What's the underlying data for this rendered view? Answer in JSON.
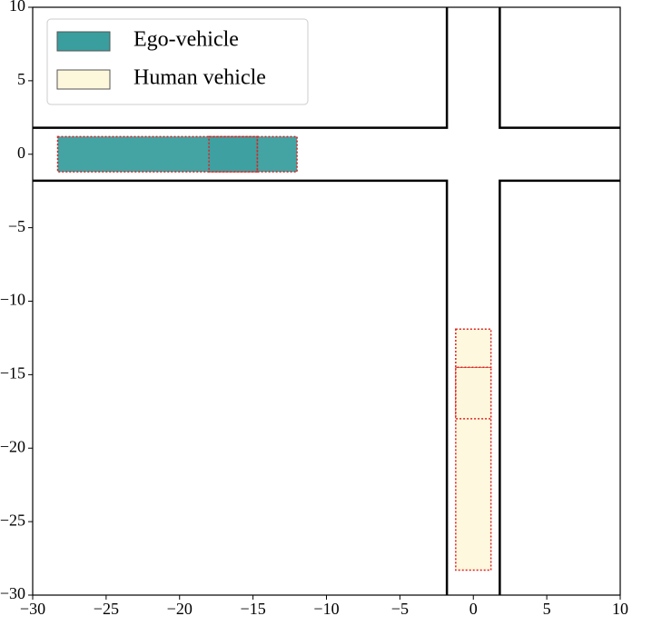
{
  "chart_data": {
    "type": "scene",
    "xlim": [
      -30,
      10
    ],
    "ylim": [
      -30,
      10
    ],
    "xticks": [
      {
        "value": -30,
        "label": "−30"
      },
      {
        "value": -25,
        "label": "−25"
      },
      {
        "value": -20,
        "label": "−20"
      },
      {
        "value": -15,
        "label": "−15"
      },
      {
        "value": -10,
        "label": "−10"
      },
      {
        "value": -5,
        "label": "−5"
      },
      0,
      5,
      10
    ],
    "yticks": [
      {
        "value": -30,
        "label": "−30"
      },
      {
        "value": -25,
        "label": "−25"
      },
      {
        "value": -20,
        "label": "−20"
      },
      {
        "value": -15,
        "label": "−15"
      },
      {
        "value": -10,
        "label": "−10"
      },
      {
        "value": -5,
        "label": "−5"
      },
      0,
      5,
      10
    ],
    "road_edges": [
      {
        "x": [
          -30,
          -1.8,
          -1.8
        ],
        "y": [
          1.8,
          1.8,
          10
        ]
      },
      {
        "x": [
          1.8,
          1.8,
          10
        ],
        "y": [
          10,
          1.8,
          1.8
        ]
      },
      {
        "x": [
          -30,
          -1.8,
          -1.8
        ],
        "y": [
          -1.8,
          -1.8,
          -30
        ]
      },
      {
        "x": [
          1.8,
          1.8,
          10
        ],
        "y": [
          -30,
          -1.8,
          -1.8
        ]
      }
    ],
    "legend": "upper left",
    "series": [
      {
        "name": "Ego-vehicle",
        "color": "#3a9e9e",
        "boxes": [
          {
            "x": [
              -28.3,
              -14.7
            ],
            "y": [
              -1.2,
              1.2
            ]
          },
          {
            "x": [
              -18.0,
              -14.7
            ],
            "y": [
              -1.2,
              1.2
            ]
          },
          {
            "x": [
              -14.7,
              -12.0
            ],
            "y": [
              -1.2,
              1.2
            ]
          }
        ]
      },
      {
        "name": "Human vehicle",
        "color": "#fdf8dc",
        "boxes": [
          {
            "x": [
              -1.2,
              1.2
            ],
            "y": [
              -28.3,
              -14.5
            ]
          },
          {
            "x": [
              -1.2,
              1.2
            ],
            "y": [
              -18.0,
              -14.5
            ]
          },
          {
            "x": [
              -1.2,
              1.2
            ],
            "y": [
              -14.5,
              -11.9
            ]
          }
        ]
      }
    ]
  }
}
